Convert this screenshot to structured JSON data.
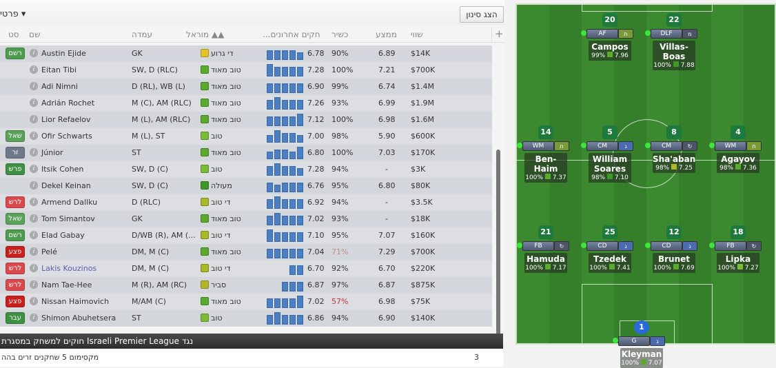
{
  "topbar": {
    "views_label": "פרטי ▾",
    "filter_button": "הצג סינון"
  },
  "columns": {
    "status": "סט",
    "name": "שם",
    "position": "עמדה",
    "morale": "מוראל ▲▲",
    "form": "...חקים אחרונים",
    "condition": "כשיר",
    "average": "ממצע",
    "value": "שווי",
    "add": "+"
  },
  "players": [
    {
      "status": "רשם",
      "status_color": "#4e9a4e",
      "name": "Austin Ejide",
      "position": "GK",
      "morale": "די גרוע",
      "morale_color": "#e5c22a",
      "form": [
        4,
        4,
        4,
        4,
        3
      ],
      "rating": "6.78",
      "condition": "90%",
      "avg": "6.89",
      "value": "$14K"
    },
    {
      "status": "",
      "name": "Eitan Tibi",
      "position": "SW, D (RLC)",
      "morale": "טוב מאוד",
      "morale_color": "#5aaa2e",
      "form": [
        5,
        4,
        4,
        4,
        4
      ],
      "rating": "7.28",
      "condition": "100%",
      "avg": "7.21",
      "value": "$700K"
    },
    {
      "status": "",
      "name": "Adi Nimni",
      "position": "D (RL), WB (L)",
      "morale": "טוב מאוד",
      "morale_color": "#5aaa2e",
      "form": [
        4,
        4,
        4,
        4,
        4
      ],
      "rating": "6.90",
      "condition": "99%",
      "avg": "6.74",
      "value": "$1.4M"
    },
    {
      "status": "",
      "name": "Adrián Rochet",
      "position": "M (C), AM (RLC)",
      "morale": "טוב מאוד",
      "morale_color": "#5aaa2e",
      "form": [
        4,
        5,
        4,
        4,
        4
      ],
      "rating": "7.26",
      "condition": "93%",
      "avg": "6.99",
      "value": "$1.9M"
    },
    {
      "status": "",
      "name": "Lior Refaelov",
      "position": "M (L), AM (RLC)",
      "morale": "טוב מאוד",
      "morale_color": "#5aaa2e",
      "form": [
        4,
        4,
        4,
        4,
        5
      ],
      "rating": "7.12",
      "condition": "100%",
      "avg": "6.98",
      "value": "$1.6M"
    },
    {
      "status": "שאל",
      "status_color": "#5aa25a",
      "name": "Ofir Schwarts",
      "position": "M (L), ST",
      "morale": "טוב",
      "morale_color": "#7cbc3a",
      "form": [
        3,
        5,
        4,
        4,
        3
      ],
      "rating": "7.00",
      "condition": "98%",
      "avg": "5.90",
      "value": "$600K"
    },
    {
      "status": "זר",
      "status_color": "#6d7888",
      "name": "Júnior",
      "position": "ST",
      "morale": "טוב מאוד",
      "morale_color": "#5aaa2e",
      "form": [
        3,
        4,
        4,
        3,
        5
      ],
      "rating": "6.80",
      "condition": "100%",
      "avg": "7.03",
      "value": "$170K"
    },
    {
      "status": "פרש",
      "status_color": "#3f8f45",
      "name": "Itsik Cohen",
      "position": "SW, D (C)",
      "morale": "טוב",
      "morale_color": "#7cbc3a",
      "form": [
        4,
        5,
        4,
        4,
        3
      ],
      "rating": "7.28",
      "condition": "94%",
      "avg": "-",
      "value": "$3K"
    },
    {
      "status": "",
      "name": "Dekel Keinan",
      "position": "SW, D (C)",
      "morale": "מעולה",
      "morale_color": "#3d9a2a",
      "form": [
        4,
        3,
        4,
        4,
        4
      ],
      "rating": "6.76",
      "condition": "95%",
      "avg": "6.80",
      "value": "$80K"
    },
    {
      "status": "לרש",
      "status_color": "#d9484c",
      "name": "Armend Dallku",
      "position": "D (RLC)",
      "morale": "די טוב",
      "morale_color": "#a8b82a",
      "form": [
        4,
        5,
        4,
        4,
        4
      ],
      "rating": "6.92",
      "condition": "94%",
      "avg": "-",
      "value": "$3.5K"
    },
    {
      "status": "שאל",
      "status_color": "#5aa25a",
      "name": "Tom Simantov",
      "position": "GK",
      "morale": "טוב מאוד",
      "morale_color": "#5aaa2e",
      "form": [
        4,
        5,
        4,
        4,
        4
      ],
      "rating": "7.02",
      "condition": "93%",
      "avg": "-",
      "value": "$18K"
    },
    {
      "status": "רשם",
      "status_color": "#4e9a4e",
      "name": "Elad Gabay",
      "position": "D/WB (R), AM (...",
      "morale": "די טוב",
      "morale_color": "#a8b82a",
      "form": [
        5,
        4,
        4,
        4,
        4
      ],
      "rating": "7.10",
      "condition": "95%",
      "avg": "7.07",
      "value": "$160K"
    },
    {
      "status": "פצע",
      "status_color": "#c8201f",
      "name": "Pelé",
      "position": "DM, M (C)",
      "morale": "טוב מאוד",
      "morale_color": "#5aaa2e",
      "form": [
        4,
        4,
        4,
        4,
        4
      ],
      "rating": "7.04",
      "condition": "71%",
      "condition_color": "#c08c8c",
      "avg": "7.29",
      "value": "$700K"
    },
    {
      "status": "לרש",
      "status_color": "#d9484c",
      "name": "Lakis Kouzinos",
      "name_color": "#5560b8",
      "position": "DM, M (C)",
      "morale": "די טוב",
      "morale_color": "#a8b82a",
      "form": [
        4,
        4
      ],
      "rating": "6.70",
      "condition": "92%",
      "avg": "6.70",
      "value": "$220K"
    },
    {
      "status": "לרש",
      "status_color": "#d9484c",
      "name": "Nam Tae-Hee",
      "position": "M (R), AM (RC)",
      "morale": "סביר",
      "morale_color": "#b5b52a",
      "form": [
        4,
        4,
        4
      ],
      "rating": "6.87",
      "condition": "97%",
      "avg": "6.87",
      "value": "$875K"
    },
    {
      "status": "פצע",
      "status_color": "#c8201f",
      "name": "Nissan Haimovich",
      "position": "M/AM (C)",
      "morale": "טוב מאוד",
      "morale_color": "#5aaa2e",
      "form": [
        4,
        4,
        4,
        4,
        5
      ],
      "rating": "7.02",
      "condition": "57%",
      "condition_color": "#c8303a",
      "avg": "6.98",
      "value": "$75K"
    },
    {
      "status": "עבר",
      "status_color": "#3f8f45",
      "name": "Shimon Abuhetsera",
      "position": "ST",
      "morale": "טוב",
      "morale_color": "#7cbc3a",
      "form": [
        4,
        5,
        4,
        4,
        4
      ],
      "rating": "6.86",
      "condition": "94%",
      "avg": "6.90",
      "value": "$140K"
    }
  ],
  "rules": {
    "title": "חוקים למשחק במסגרת Israeli Premier League נגד",
    "text": "מקסימום 5 שחקנים זרים בהה",
    "count": "3"
  },
  "lineup": [
    {
      "number": "20",
      "role": "AF",
      "duty": "ת",
      "name": "Campos",
      "cond": "99%",
      "rating": "7.96",
      "morale_color": "#5aaa2e",
      "duty_color": "#7a9a3a"
    },
    {
      "number": "22",
      "role": "DLF",
      "duty": "מ",
      "name": "Villas-Boas",
      "cond": "100%",
      "rating": "7.88",
      "morale_color": "#3d9a2a",
      "duty_color": "#4e5566"
    },
    {
      "number": "14",
      "role": "WM",
      "duty": "ת",
      "name": "Ben-Haim",
      "cond": "100%",
      "rating": "7.37",
      "morale_color": "#5aaa2e",
      "duty_color": "#7a9a3a"
    },
    {
      "number": "5",
      "role": "CM",
      "duty": "ג",
      "name": "William Soares",
      "cond": "98%",
      "rating": "7.10",
      "morale_color": "#3d9a2a",
      "duty_color": "#4a6bb0"
    },
    {
      "number": "8",
      "role": "CM",
      "duty": "↻",
      "name": "Sha'aban",
      "cond": "98%",
      "rating": "7.25",
      "morale_color": "#b5b52a",
      "duty_color": "#4e5566"
    },
    {
      "number": "4",
      "role": "WM",
      "duty": "ת",
      "name": "Agayov",
      "cond": "98%",
      "rating": "7.36",
      "morale_color": "#5aaa2e",
      "duty_color": "#7a9a3a"
    },
    {
      "number": "21",
      "role": "FB",
      "duty": "↻",
      "name": "Hamuda",
      "cond": "100%",
      "rating": "7.17",
      "morale_color": "#5aaa2e",
      "duty_color": "#4e5566"
    },
    {
      "number": "25",
      "role": "CD",
      "duty": "ג",
      "name": "Tzedek",
      "cond": "100%",
      "rating": "7.41",
      "morale_color": "#5aaa2e",
      "duty_color": "#4a6bb0"
    },
    {
      "number": "12",
      "role": "CD",
      "duty": "ג",
      "name": "Brunet",
      "cond": "100%",
      "rating": "7.69",
      "morale_color": "#5aaa2e",
      "duty_color": "#4a6bb0"
    },
    {
      "number": "18",
      "role": "FB",
      "duty": "↻",
      "name": "Lipka",
      "cond": "100%",
      "rating": "7.27",
      "morale_color": "#7cbc3a",
      "duty_color": "#4e5566"
    },
    {
      "number": "1",
      "role": "G",
      "duty": "ג",
      "name": "Kleyman",
      "cond": "100%",
      "rating": "7.07",
      "morale_color": "#5aaa2e",
      "duty_color": "#4a6bb0",
      "gk": true
    }
  ]
}
